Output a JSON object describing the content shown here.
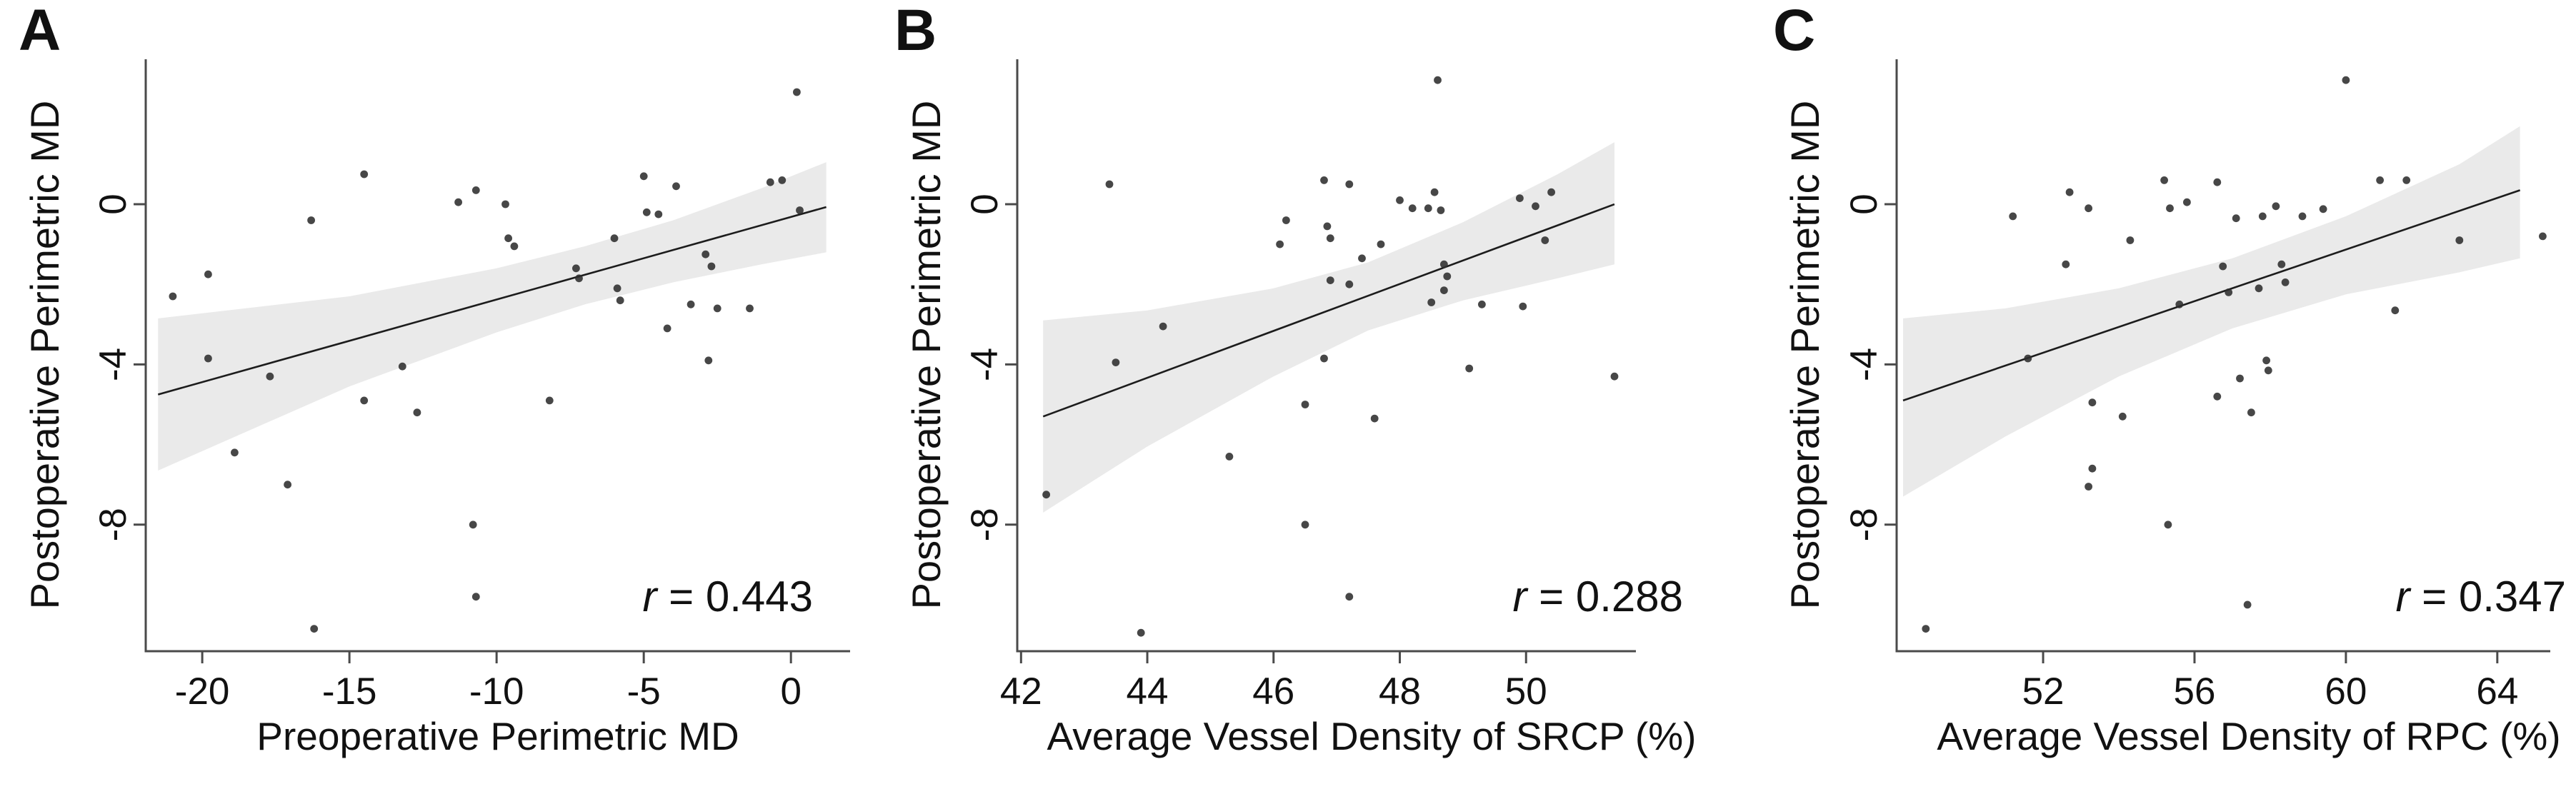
{
  "figure": {
    "background": "#ffffff"
  },
  "colors": {
    "point": "#2d2d2d",
    "trend": "#1c1c1c",
    "band": "#eaeaea",
    "axis": "#4a4a4a",
    "text": "#111111"
  },
  "panels": [
    {
      "label": "A",
      "ylabel": "Postoperative Perimetric MD",
      "xlabel": "Preoperative Perimetric MD",
      "r_var": "r",
      "r_value": " = 0.443"
    },
    {
      "label": "B",
      "ylabel": "Postoperative Perimetric MD",
      "xlabel": "Average Vessel Density of SRCP (%)",
      "r_var": "r",
      "r_value": " = 0.288"
    },
    {
      "label": "C",
      "ylabel": "Postoperative Perimetric MD",
      "xlabel": "Average Vessel Density of RPC (%)",
      "r_var": "r",
      "r_value": " = 0.347"
    }
  ],
  "chart_data": [
    {
      "type": "scatter",
      "title": "A",
      "xlabel": "Preoperative Perimetric MD",
      "ylabel": "Postoperative Perimetric MD",
      "annotation": "r = 0.443",
      "r": 0.443,
      "grid": false,
      "legend_position": "none",
      "xlim": [
        -21.92,
        2.01
      ],
      "ylim": [
        -11.16,
        3.62
      ],
      "x_ticks": [
        -20,
        -15,
        -10,
        -5,
        0
      ],
      "x_tick_labels": [
        "-20",
        "-15",
        "-10",
        "-5",
        "0"
      ],
      "y_ticks": [
        0,
        -4,
        -8
      ],
      "y_tick_labels": [
        "0",
        "-4",
        "-8"
      ],
      "points": [
        [
          0.2,
          2.8
        ],
        [
          -14.5,
          0.75
        ],
        [
          -10.7,
          0.35
        ],
        [
          -11.3,
          0.05
        ],
        [
          -9.7,
          0.0
        ],
        [
          -16.3,
          -0.4
        ],
        [
          -5.0,
          0.7
        ],
        [
          -3.9,
          0.45
        ],
        [
          -0.7,
          0.55
        ],
        [
          -0.3,
          0.6
        ],
        [
          0.3,
          -0.15
        ],
        [
          -4.9,
          -0.2
        ],
        [
          -4.5,
          -0.25
        ],
        [
          -9.6,
          -0.85
        ],
        [
          -9.4,
          -1.05
        ],
        [
          -6.0,
          -0.85
        ],
        [
          -2.9,
          -1.25
        ],
        [
          -2.7,
          -1.55
        ],
        [
          -19.8,
          -1.75
        ],
        [
          -21.0,
          -2.3
        ],
        [
          -7.3,
          -1.6
        ],
        [
          -7.2,
          -1.85
        ],
        [
          -5.9,
          -2.1
        ],
        [
          -5.8,
          -2.4
        ],
        [
          -3.4,
          -2.5
        ],
        [
          -2.5,
          -2.6
        ],
        [
          -1.4,
          -2.6
        ],
        [
          -4.2,
          -3.1
        ],
        [
          -2.8,
          -3.9
        ],
        [
          -17.7,
          -4.3
        ],
        [
          -19.8,
          -3.85
        ],
        [
          -13.2,
          -4.05
        ],
        [
          -14.5,
          -4.9
        ],
        [
          -12.7,
          -5.2
        ],
        [
          -8.2,
          -4.9
        ],
        [
          -18.9,
          -6.2
        ],
        [
          -17.1,
          -7.0
        ],
        [
          -10.8,
          -8.0
        ],
        [
          -10.7,
          -9.8
        ],
        [
          -16.2,
          -10.6
        ]
      ],
      "trend": [
        [
          -21.5,
          -4.75
        ],
        [
          1.2,
          -0.07
        ]
      ],
      "band": {
        "upper": [
          [
            -21.5,
            -2.85
          ],
          [
            -15,
            -2.3
          ],
          [
            -10,
            -1.6
          ],
          [
            -7,
            -1.05
          ],
          [
            -4,
            -0.4
          ],
          [
            -1,
            0.4
          ],
          [
            1.2,
            1.05
          ]
        ],
        "lower": [
          [
            -21.5,
            -6.65
          ],
          [
            -15,
            -4.55
          ],
          [
            -10,
            -3.2
          ],
          [
            -7,
            -2.5
          ],
          [
            -4,
            -1.95
          ],
          [
            -1,
            -1.5
          ],
          [
            1.2,
            -1.2
          ]
        ]
      }
    },
    {
      "type": "scatter",
      "title": "B",
      "xlabel": "Average Vessel Density of SRCP (%)",
      "ylabel": "Postoperative Perimetric MD",
      "annotation": "r = 0.288",
      "r": 0.288,
      "grid": false,
      "legend_position": "none",
      "xlim": [
        41.94,
        51.74
      ],
      "ylim": [
        -11.16,
        3.62
      ],
      "x_ticks": [
        42,
        44,
        46,
        48,
        50
      ],
      "x_tick_labels": [
        "42",
        "44",
        "46",
        "48",
        "50"
      ],
      "y_ticks": [
        0,
        -4,
        -8
      ],
      "y_tick_labels": [
        "0",
        "-4",
        "-8"
      ],
      "points": [
        [
          48.6,
          3.1
        ],
        [
          43.4,
          0.5
        ],
        [
          46.8,
          0.6
        ],
        [
          47.2,
          0.5
        ],
        [
          48.0,
          0.1
        ],
        [
          48.2,
          -0.1
        ],
        [
          48.55,
          0.3
        ],
        [
          48.45,
          -0.1
        ],
        [
          48.65,
          -0.15
        ],
        [
          49.9,
          0.15
        ],
        [
          50.15,
          -0.05
        ],
        [
          50.4,
          0.3
        ],
        [
          50.3,
          -0.9
        ],
        [
          46.2,
          -0.4
        ],
        [
          46.1,
          -1.0
        ],
        [
          46.85,
          -0.55
        ],
        [
          46.9,
          -0.85
        ],
        [
          47.4,
          -1.35
        ],
        [
          47.7,
          -1.0
        ],
        [
          46.9,
          -1.9
        ],
        [
          47.2,
          -2.0
        ],
        [
          48.7,
          -1.5
        ],
        [
          48.75,
          -1.8
        ],
        [
          48.7,
          -2.15
        ],
        [
          48.5,
          -2.45
        ],
        [
          49.3,
          -2.5
        ],
        [
          49.95,
          -2.55
        ],
        [
          44.25,
          -3.05
        ],
        [
          43.5,
          -3.95
        ],
        [
          46.8,
          -3.85
        ],
        [
          49.1,
          -4.1
        ],
        [
          51.4,
          -4.3
        ],
        [
          46.5,
          -5.0
        ],
        [
          47.6,
          -5.35
        ],
        [
          45.3,
          -6.3
        ],
        [
          42.4,
          -7.25
        ],
        [
          46.5,
          -8.0
        ],
        [
          47.2,
          -9.8
        ],
        [
          43.9,
          -10.7
        ]
      ],
      "trend": [
        [
          42.35,
          -5.3
        ],
        [
          51.4,
          0.0
        ]
      ],
      "band": {
        "upper": [
          [
            42.35,
            -2.9
          ],
          [
            44,
            -2.65
          ],
          [
            46,
            -2.1
          ],
          [
            47.5,
            -1.45
          ],
          [
            49,
            -0.45
          ],
          [
            50.5,
            0.75
          ],
          [
            51.4,
            1.55
          ]
        ],
        "lower": [
          [
            42.35,
            -7.7
          ],
          [
            44,
            -6.05
          ],
          [
            46,
            -4.3
          ],
          [
            47.5,
            -3.15
          ],
          [
            49,
            -2.4
          ],
          [
            50.5,
            -1.85
          ],
          [
            51.4,
            -1.5
          ]
        ]
      }
    },
    {
      "type": "scatter",
      "title": "C",
      "xlabel": "Average Vessel Density of RPC (%)",
      "ylabel": "Postoperative Perimetric MD",
      "annotation": "r = 0.347",
      "r": 0.347,
      "grid": false,
      "legend_position": "none",
      "xlim": [
        48.13,
        65.4
      ],
      "ylim": [
        -11.16,
        3.62
      ],
      "x_ticks": [
        52,
        56,
        60,
        64
      ],
      "x_tick_labels": [
        "52",
        "56",
        "60",
        "64"
      ],
      "y_ticks": [
        0,
        -4,
        -8
      ],
      "y_tick_labels": [
        "0",
        "-4",
        "-8"
      ],
      "points": [
        [
          60.0,
          3.1
        ],
        [
          51.2,
          -0.3
        ],
        [
          52.7,
          0.3
        ],
        [
          53.2,
          -0.1
        ],
        [
          52.6,
          -1.5
        ],
        [
          55.2,
          0.6
        ],
        [
          55.35,
          -0.1
        ],
        [
          55.8,
          0.05
        ],
        [
          56.6,
          0.55
        ],
        [
          57.1,
          -0.35
        ],
        [
          57.8,
          -0.3
        ],
        [
          58.15,
          -0.05
        ],
        [
          58.85,
          -0.3
        ],
        [
          59.4,
          -0.12
        ],
        [
          60.9,
          0.6
        ],
        [
          61.6,
          0.6
        ],
        [
          63.0,
          -0.9
        ],
        [
          65.2,
          -0.8
        ],
        [
          54.3,
          -0.9
        ],
        [
          56.75,
          -1.55
        ],
        [
          58.3,
          -1.5
        ],
        [
          58.4,
          -1.95
        ],
        [
          57.7,
          -2.1
        ],
        [
          56.9,
          -2.2
        ],
        [
          55.6,
          -2.5
        ],
        [
          61.3,
          -2.65
        ],
        [
          51.6,
          -3.85
        ],
        [
          57.9,
          -3.9
        ],
        [
          57.95,
          -4.15
        ],
        [
          57.2,
          -4.35
        ],
        [
          56.6,
          -4.8
        ],
        [
          57.5,
          -5.2
        ],
        [
          53.3,
          -4.95
        ],
        [
          54.1,
          -5.3
        ],
        [
          53.3,
          -6.6
        ],
        [
          53.2,
          -7.05
        ],
        [
          55.3,
          -8.0
        ],
        [
          57.4,
          -10.0
        ],
        [
          48.9,
          -10.6
        ]
      ],
      "trend": [
        [
          48.3,
          -4.9
        ],
        [
          64.6,
          0.35
        ]
      ],
      "band": {
        "upper": [
          [
            48.3,
            -2.85
          ],
          [
            51,
            -2.6
          ],
          [
            54,
            -2.1
          ],
          [
            57,
            -1.35
          ],
          [
            60,
            -0.3
          ],
          [
            63,
            1.0
          ],
          [
            64.6,
            1.95
          ]
        ],
        "lower": [
          [
            48.3,
            -7.3
          ],
          [
            51,
            -5.8
          ],
          [
            54,
            -4.3
          ],
          [
            57,
            -3.1
          ],
          [
            60,
            -2.25
          ],
          [
            63,
            -1.7
          ],
          [
            64.6,
            -1.35
          ]
        ]
      }
    }
  ]
}
